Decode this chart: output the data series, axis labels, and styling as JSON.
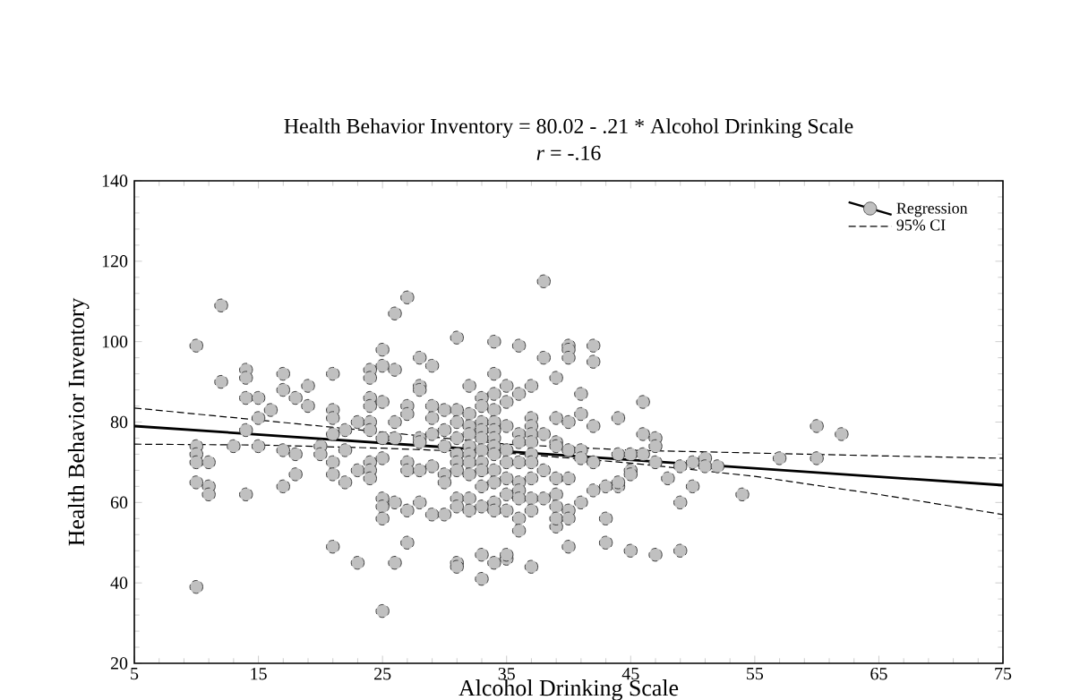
{
  "chart_data": {
    "type": "scatter",
    "title": "Health Behavior Inventory  = 80.02 - .21 * Alcohol Drinking Scale",
    "subtitle": "*r* = -.16",
    "xlabel": "Alcohol Drinking Scale",
    "ylabel": "Health Behavior Inventory",
    "xlim": [
      5,
      75
    ],
    "xticks": [
      5,
      15,
      25,
      35,
      45,
      55,
      65,
      75
    ],
    "ylim": [
      20,
      140
    ],
    "yticks": [
      20,
      40,
      60,
      80,
      100,
      120,
      140
    ],
    "legend": "top right",
    "series": [
      {
        "name": "Regression",
        "marker": "circle",
        "color": "#c0c0c0",
        "x": [
          10,
          10,
          10,
          10,
          10,
          10,
          11,
          11,
          11,
          12,
          12,
          13,
          14,
          14,
          14,
          14,
          14,
          15,
          15,
          15,
          16,
          17,
          17,
          17,
          17,
          18,
          18,
          18,
          19,
          19,
          20,
          20,
          21,
          21,
          21,
          21,
          21,
          21,
          21,
          22,
          22,
          22,
          23,
          23,
          23,
          24,
          24,
          24,
          24,
          24,
          24,
          24,
          24,
          24,
          25,
          25,
          25,
          25,
          25,
          25,
          25,
          25,
          25,
          26,
          26,
          26,
          26,
          26,
          26,
          27,
          27,
          27,
          27,
          27,
          27,
          27,
          28,
          28,
          28,
          28,
          28,
          28,
          28,
          29,
          29,
          29,
          29,
          29,
          29,
          30,
          30,
          30,
          30,
          30,
          30,
          31,
          31,
          31,
          31,
          31,
          31,
          31,
          31,
          31,
          31,
          31,
          32,
          32,
          32,
          32,
          32,
          32,
          32,
          32,
          32,
          32,
          33,
          33,
          33,
          33,
          33,
          33,
          33,
          33,
          33,
          33,
          33,
          33,
          34,
          34,
          34,
          34,
          34,
          34,
          34,
          34,
          34,
          34,
          34,
          34,
          34,
          34,
          35,
          35,
          35,
          35,
          35,
          35,
          35,
          35,
          35,
          35,
          36,
          36,
          36,
          36,
          36,
          36,
          36,
          36,
          36,
          36,
          37,
          37,
          37,
          37,
          37,
          37,
          37,
          37,
          37,
          37,
          37,
          38,
          38,
          38,
          38,
          38,
          39,
          39,
          39,
          39,
          39,
          39,
          39,
          39,
          39,
          40,
          40,
          40,
          40,
          40,
          40,
          40,
          40,
          40,
          41,
          41,
          41,
          41,
          41,
          42,
          42,
          42,
          42,
          42,
          43,
          43,
          43,
          44,
          44,
          44,
          44,
          45,
          45,
          45,
          45,
          46,
          46,
          46,
          47,
          47,
          47,
          47,
          48,
          49,
          49,
          49,
          50,
          50,
          51,
          51,
          52,
          54,
          57,
          60,
          60,
          62
        ],
        "values": [
          99,
          74,
          72,
          70,
          65,
          39,
          70,
          64,
          62,
          109,
          90,
          74,
          93,
          91,
          86,
          78,
          62,
          86,
          81,
          74,
          83,
          92,
          88,
          73,
          64,
          86,
          72,
          67,
          89,
          84,
          74,
          72,
          92,
          83,
          81,
          77,
          70,
          67,
          49,
          78,
          73,
          65,
          80,
          68,
          45,
          93,
          91,
          86,
          84,
          80,
          78,
          70,
          68,
          66,
          98,
          94,
          85,
          76,
          71,
          61,
          59,
          56,
          33,
          107,
          93,
          80,
          76,
          60,
          45,
          111,
          84,
          82,
          70,
          68,
          58,
          50,
          96,
          89,
          88,
          76,
          75,
          68,
          60,
          94,
          84,
          81,
          77,
          69,
          57,
          83,
          78,
          74,
          67,
          65,
          57,
          101,
          83,
          80,
          76,
          72,
          70,
          68,
          61,
          59,
          45,
          44,
          89,
          82,
          79,
          77,
          74,
          72,
          70,
          67,
          61,
          58,
          86,
          84,
          80,
          78,
          76,
          73,
          70,
          68,
          64,
          59,
          47,
          41,
          100,
          92,
          87,
          83,
          80,
          78,
          76,
          74,
          72,
          68,
          65,
          60,
          58,
          45,
          89,
          85,
          79,
          73,
          70,
          66,
          62,
          58,
          46,
          47,
          99,
          87,
          77,
          75,
          70,
          65,
          63,
          61,
          56,
          53,
          89,
          81,
          79,
          77,
          75,
          72,
          70,
          66,
          61,
          58,
          44,
          115,
          96,
          77,
          68,
          61,
          91,
          81,
          75,
          74,
          66,
          62,
          59,
          54,
          56,
          99,
          98,
          96,
          80,
          73,
          66,
          58,
          56,
          49,
          87,
          82,
          73,
          71,
          60,
          99,
          95,
          79,
          70,
          63,
          64,
          56,
          50,
          81,
          72,
          64,
          65,
          72,
          68,
          67,
          48,
          85,
          77,
          72,
          76,
          74,
          70,
          47,
          66,
          69,
          60,
          48,
          70,
          64,
          71,
          69,
          69,
          62,
          71,
          79,
          71,
          77
        ]
      },
      {
        "type": "line",
        "marker": "none",
        "line_style": "solid",
        "color": "#000000",
        "x": [
          5,
          75
        ],
        "values": [
          79,
          64.3
        ]
      },
      {
        "name": "95% CI",
        "type": "line",
        "marker": "none",
        "line_style": "dashed",
        "color": "#000000",
        "x": [
          5,
          15,
          25,
          35,
          45,
          55,
          65,
          75
        ],
        "values": [
          83.5,
          80.5,
          77.5,
          74.5,
          73,
          72.3,
          71.6,
          71
        ]
      },
      {
        "type": "line",
        "marker": "none",
        "line_style": "dashed",
        "color": "#000000",
        "x": [
          5,
          15,
          25,
          35,
          45,
          55,
          65,
          75
        ],
        "values": [
          74.5,
          74.3,
          73.5,
          72.3,
          69.8,
          66.5,
          62,
          57
        ]
      }
    ]
  }
}
